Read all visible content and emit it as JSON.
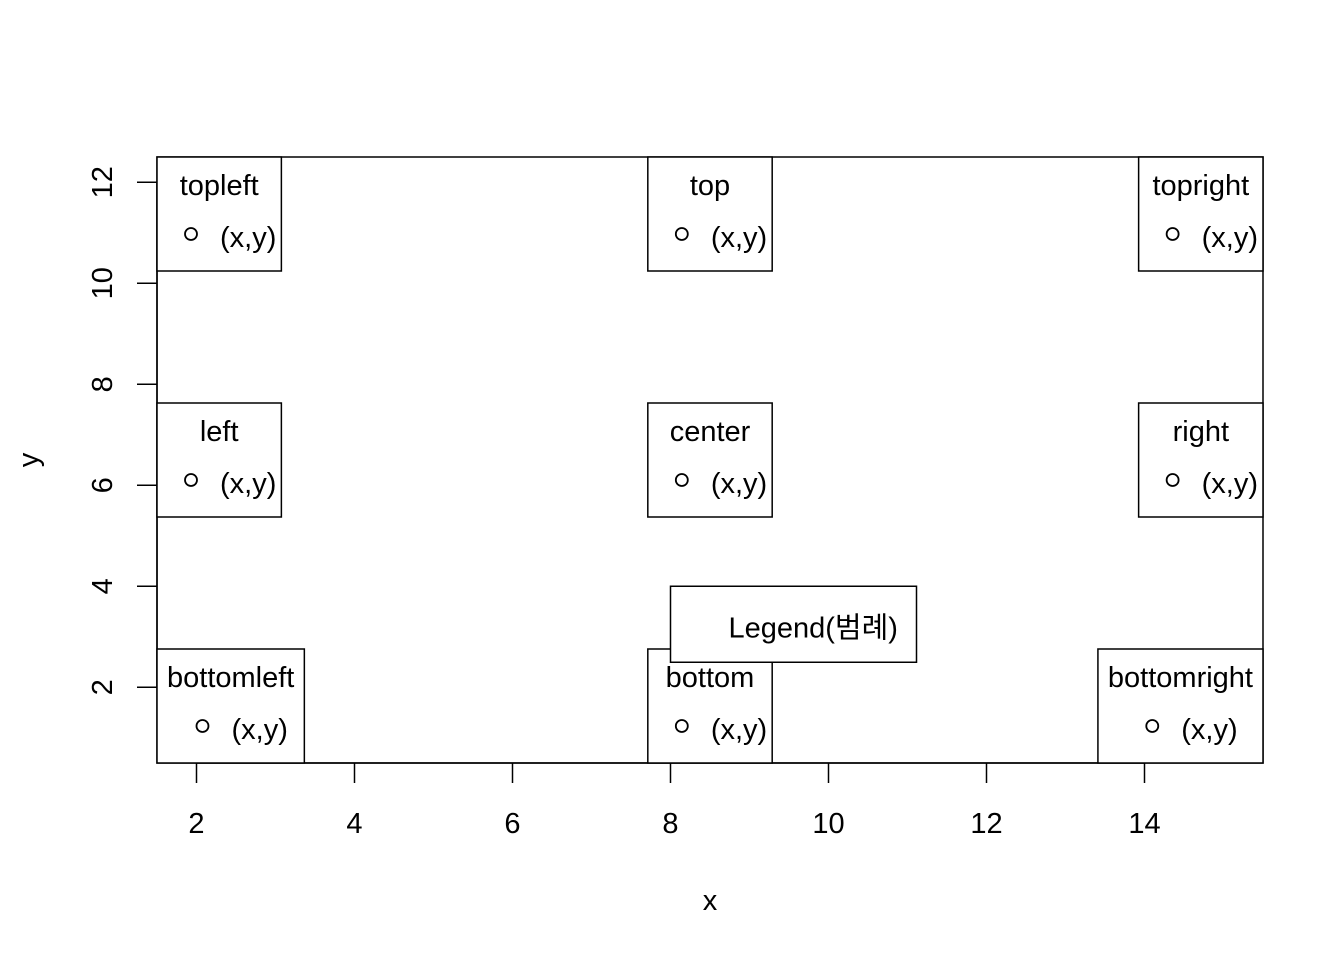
{
  "chart_data": {
    "type": "scatter",
    "title": "",
    "xlabel": "x",
    "ylabel": "y",
    "xlim": [
      1.5,
      15.5
    ],
    "ylim": [
      0.5,
      12.5
    ],
    "x_ticks": [
      2,
      4,
      6,
      8,
      10,
      12,
      14
    ],
    "y_ticks": [
      2,
      4,
      6,
      8,
      10,
      12
    ],
    "grid": false,
    "legends": [
      {
        "position": "topleft",
        "title": "topleft",
        "label": "(x,y)"
      },
      {
        "position": "top",
        "title": "top",
        "label": "(x,y)"
      },
      {
        "position": "topright",
        "title": "topright",
        "label": "(x,y)"
      },
      {
        "position": "left",
        "title": "left",
        "label": "(x,y)"
      },
      {
        "position": "center",
        "title": "center",
        "label": "(x,y)"
      },
      {
        "position": "right",
        "title": "right",
        "label": "(x,y)"
      },
      {
        "position": "bottomleft",
        "title": "bottomleft",
        "label": "(x,y)"
      },
      {
        "position": "bottom",
        "title": "bottom",
        "label": "(x,y)"
      },
      {
        "position": "bottomright",
        "title": "bottomright",
        "label": "(x,y)"
      }
    ],
    "annotation_legend": {
      "x": 8,
      "y": 4,
      "label": "Legend(범례)"
    }
  }
}
